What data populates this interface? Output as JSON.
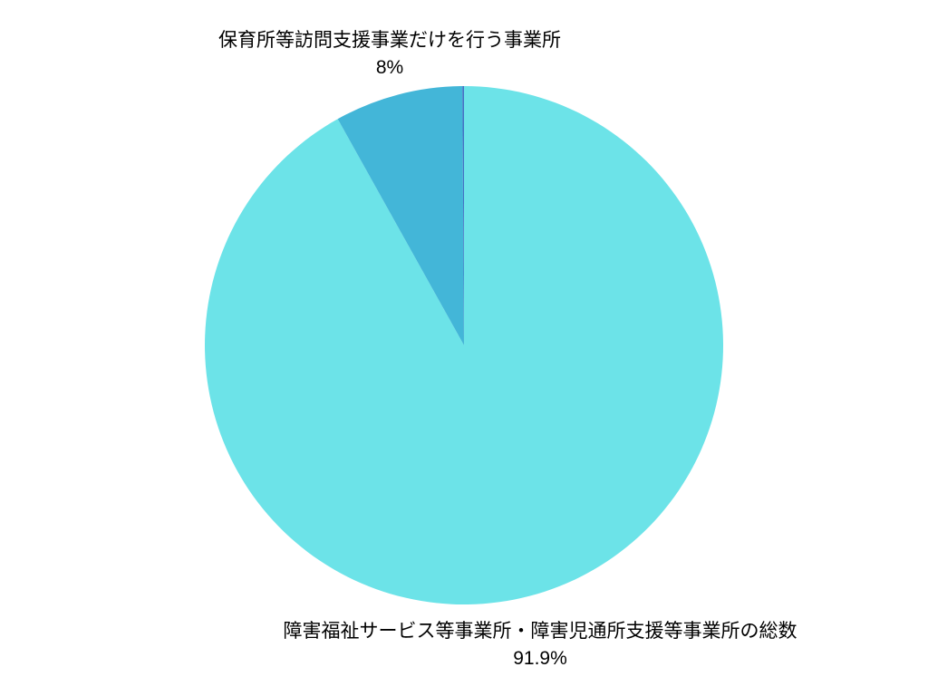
{
  "chart_data": {
    "type": "pie",
    "title": "",
    "background_color": "#FFFFFF",
    "label_color": "#000000",
    "start_angle_deg": 0,
    "direction": "clockwise",
    "legend": "none",
    "slices": [
      {
        "label": "障害福祉サービス等事業所・障害児通所支援等事業所の総数",
        "value": 91.9,
        "display_pct": "91.9%",
        "color": "#6CE3E8",
        "label_position": "outside-bottom"
      },
      {
        "label": "保育所等訪問支援事業だけを行う事業所",
        "value": 8,
        "display_pct": "8%",
        "color": "#43B6D8",
        "label_position": "outside-top"
      },
      {
        "label": "",
        "value": 0.1,
        "display_pct": "",
        "color": "#4472C4",
        "label_position": "none"
      }
    ]
  }
}
